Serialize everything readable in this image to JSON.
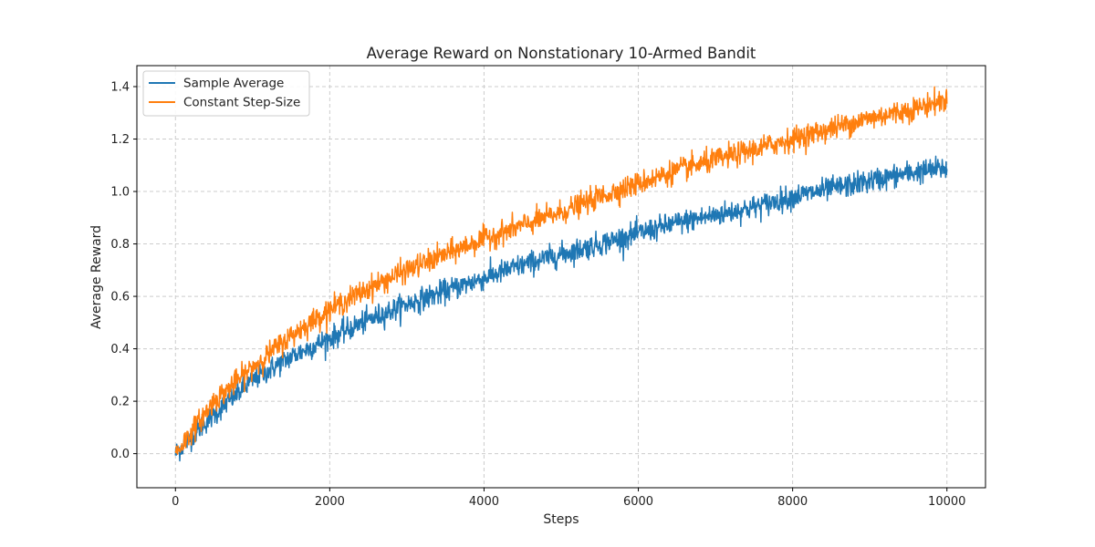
{
  "chart_data": {
    "type": "line",
    "title": "Average Reward on Nonstationary 10-Armed Bandit",
    "xlabel": "Steps",
    "ylabel": "Average Reward",
    "xlim": [
      -500,
      10500
    ],
    "ylim": [
      -0.13,
      1.48
    ],
    "xticks": [
      0,
      2000,
      4000,
      6000,
      8000,
      10000
    ],
    "xtick_labels": [
      "0",
      "2000",
      "4000",
      "6000",
      "8000",
      "10000"
    ],
    "yticks": [
      0.0,
      0.2,
      0.4,
      0.6,
      0.8,
      1.0,
      1.2,
      1.4
    ],
    "ytick_labels": [
      "0.0",
      "0.2",
      "0.4",
      "0.6",
      "0.8",
      "1.0",
      "1.2",
      "1.4"
    ],
    "grid": true,
    "legend_position": "top-left",
    "series": [
      {
        "name": "Sample Average",
        "color": "#1f77b4",
        "noise": 0.022,
        "x": [
          0,
          250,
          500,
          1000,
          1500,
          2000,
          2500,
          3000,
          3500,
          4000,
          4500,
          5000,
          5500,
          6000,
          6500,
          7000,
          7500,
          8000,
          8500,
          9000,
          9500,
          10000
        ],
        "y": [
          0.0,
          0.08,
          0.15,
          0.28,
          0.37,
          0.44,
          0.51,
          0.57,
          0.62,
          0.67,
          0.72,
          0.76,
          0.8,
          0.84,
          0.88,
          0.91,
          0.94,
          0.98,
          1.01,
          1.04,
          1.07,
          1.09
        ]
      },
      {
        "name": "Constant Step-Size",
        "color": "#ff7f0e",
        "noise": 0.022,
        "x": [
          0,
          250,
          500,
          1000,
          1500,
          2000,
          2500,
          3000,
          3500,
          4000,
          4500,
          5000,
          5500,
          6000,
          6500,
          7000,
          7500,
          8000,
          8500,
          9000,
          9500,
          10000
        ],
        "y": [
          0.0,
          0.1,
          0.2,
          0.33,
          0.45,
          0.55,
          0.63,
          0.7,
          0.76,
          0.82,
          0.87,
          0.92,
          0.98,
          1.03,
          1.08,
          1.12,
          1.16,
          1.2,
          1.24,
          1.28,
          1.31,
          1.35
        ]
      }
    ]
  }
}
